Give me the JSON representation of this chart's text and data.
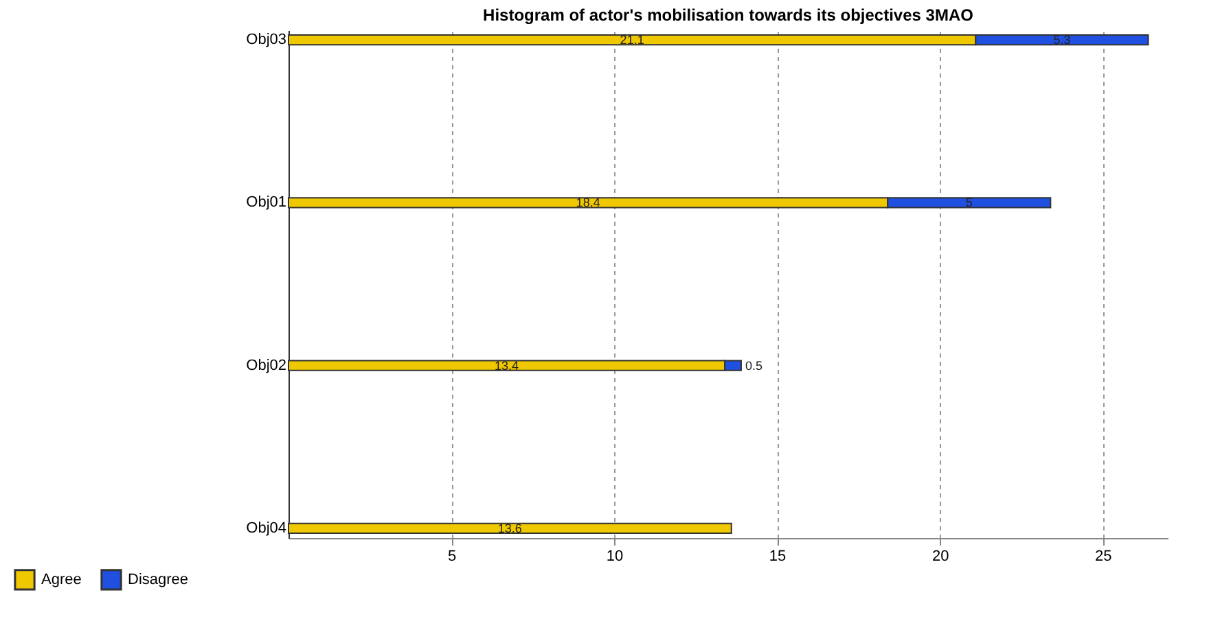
{
  "chart_data": {
    "type": "bar",
    "orientation": "horizontal",
    "stacked": true,
    "title": "Histogram of actor's mobilisation towards its objectives 3MAO",
    "categories": [
      "Obj03",
      "Obj01",
      "Obj02",
      "Obj04"
    ],
    "series": [
      {
        "name": "Agree",
        "color": "#f0c800",
        "values": [
          21.1,
          18.4,
          13.4,
          13.6
        ]
      },
      {
        "name": "Disagree",
        "color": "#1f50e0",
        "values": [
          5.3,
          5,
          0.5,
          null
        ]
      }
    ],
    "xlim": [
      0,
      27
    ],
    "xticks": [
      5,
      10,
      15,
      20,
      25
    ],
    "grid": "x",
    "legend": "bottom left",
    "data_labels": true
  }
}
